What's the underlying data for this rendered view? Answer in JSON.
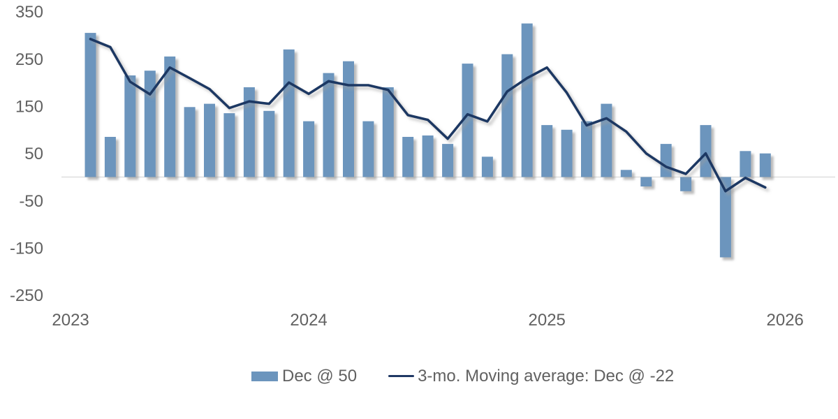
{
  "chart_data": {
    "type": "bar",
    "subtype": "bar-with-line-overlay",
    "title": "",
    "categories": [
      "Feb 2023",
      "Mar 2023",
      "Apr 2023",
      "May 2023",
      "Jun 2023",
      "Jul 2023",
      "Aug 2023",
      "Sep 2023",
      "Oct 2023",
      "Nov 2023",
      "Dec 2023",
      "Jan 2024",
      "Feb 2024",
      "Mar 2024",
      "Apr 2024",
      "May 2024",
      "Jun 2024",
      "Jul 2024",
      "Aug 2024",
      "Sep 2024",
      "Oct 2024",
      "Nov 2024",
      "Dec 2024",
      "Jan 2025",
      "Feb 2025",
      "Mar 2025",
      "Apr 2025",
      "May 2025",
      "Jun 2025",
      "Jul 2025",
      "Aug 2025",
      "Sep 2025",
      "Oct 2025",
      "Nov 2025",
      "Dec 2025"
    ],
    "series": [
      {
        "name": "Dec @ 50",
        "type": "bar",
        "values": [
          305,
          85,
          215,
          225,
          255,
          148,
          155,
          135,
          190,
          140,
          270,
          118,
          220,
          245,
          118,
          190,
          85,
          88,
          70,
          240,
          43,
          260,
          325,
          110,
          100,
          118,
          155,
          15,
          -20,
          70,
          -30,
          110,
          -170,
          55,
          50
        ]
      },
      {
        "name": "3-mo. Moving average: Dec @ -22",
        "type": "line",
        "values": [
          292,
          275,
          201.7,
          175,
          231.7,
          209.3,
          186,
          146,
          160,
          155,
          200,
          176,
          202.7,
          194.3,
          194.3,
          184.3,
          131,
          121,
          81,
          132.7,
          117.7,
          181,
          209.3,
          231.7,
          178.3,
          109.3,
          124.3,
          96,
          50,
          21.7,
          6.7,
          50,
          -30,
          -1.7,
          -22
        ]
      }
    ],
    "ylim": [
      -250,
      350
    ],
    "yticks": [
      350,
      250,
      150,
      50,
      -50,
      -150,
      -250
    ],
    "x_year_labels": [
      "2023",
      "2024",
      "2025",
      "2026"
    ],
    "grid": "zero-baseline-only",
    "legend_position": "bottom-center"
  },
  "legend": {
    "bar_label": "Dec @ 50",
    "line_label": "3-mo. Moving average: Dec @ -22"
  },
  "colors": {
    "bar": "#6C95BD",
    "line": "#1F3864",
    "axis_text": "#616161",
    "baseline": "#D9D9D9",
    "background": "#FFFFFF"
  }
}
